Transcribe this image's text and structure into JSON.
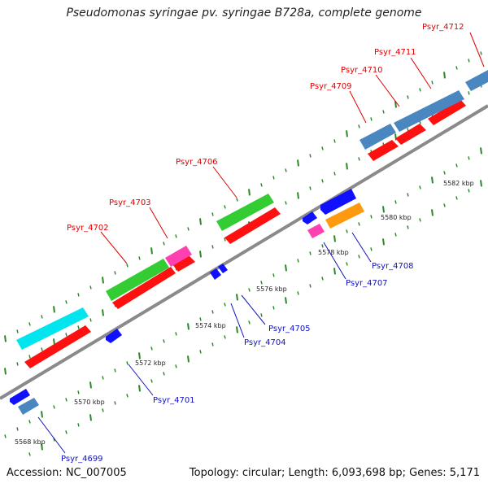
{
  "title": "Pseudomonas syringae pv. syringae B728a, complete genome",
  "footer": {
    "accession": "Accession: NC_007005",
    "summary": "Topology: circular; Length: 6,093,698 bp; Genes: 5,171"
  },
  "colors": {
    "backbone": "#888888",
    "tick": "#2a8a2a",
    "top_label": "#e00000",
    "bottom_label": "#1010c0",
    "cds": "#ff1010",
    "cyan": "#00e5ee",
    "green": "#33cc33",
    "pink": "#ff40b0",
    "steel": "#4a86c0",
    "blue": "#1010ff",
    "orange": "#ff9a10"
  },
  "scale_labels": [
    "5568 kbp",
    "5570 kbp",
    "5572 kbp",
    "5574 kbp",
    "5576 kbp",
    "5578 kbp",
    "5580 kbp",
    "5582 kbp"
  ],
  "top_genes": [
    "Psyr_4702",
    "Psyr_4703",
    "Psyr_4706",
    "Psyr_4709",
    "Psyr_4710",
    "Psyr_4711",
    "Psyr_4712"
  ],
  "bottom_genes": [
    "Psyr_4699",
    "Psyr_4701",
    "Psyr_4704",
    "Psyr_4705",
    "Psyr_4707",
    "Psyr_4708"
  ]
}
